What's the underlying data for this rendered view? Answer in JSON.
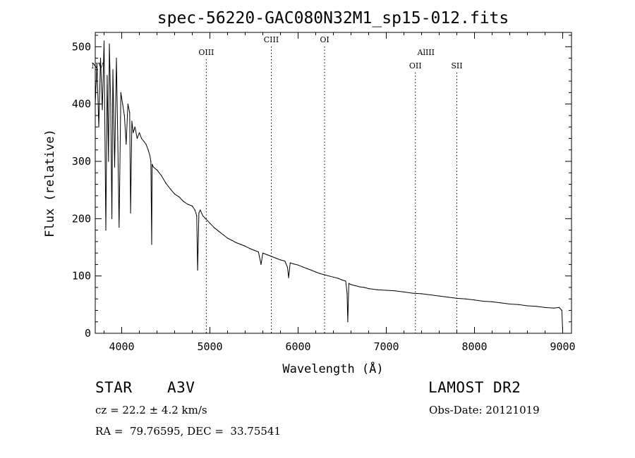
{
  "chart_data": {
    "type": "line",
    "title": "spec-56220-GAC080N32M1_sp15-012.fits",
    "xlabel": "Wavelength (Å)",
    "ylabel": "Flux (relative)",
    "xlim": [
      3700,
      9100
    ],
    "ylim": [
      0,
      525
    ],
    "xticks": [
      4000,
      5000,
      6000,
      7000,
      8000,
      9000
    ],
    "yticks": [
      0,
      100,
      200,
      300,
      400,
      500
    ],
    "grid": false,
    "line_color": "#000000",
    "marker_color": "#000000",
    "series": [
      {
        "x": [
          3700,
          3720,
          3740,
          3760,
          3780,
          3800,
          3820,
          3835,
          3850,
          3860,
          3875,
          3889,
          3900,
          3920,
          3940,
          3955,
          3970,
          3990,
          4010,
          4030,
          4050,
          4070,
          4090,
          4101,
          4115,
          4130,
          4150,
          4175,
          4200,
          4225,
          4250,
          4275,
          4300,
          4320,
          4330,
          4340,
          4345,
          4360,
          4400,
          4450,
          4500,
          4550,
          4600,
          4650,
          4700,
          4750,
          4800,
          4830,
          4850,
          4861,
          4875,
          4890,
          4920,
          4950,
          5000,
          5050,
          5100,
          5150,
          5200,
          5250,
          5300,
          5350,
          5400,
          5450,
          5500,
          5550,
          5580,
          5600,
          5650,
          5700,
          5750,
          5800,
          5850,
          5880,
          5893,
          5910,
          5950,
          6000,
          6050,
          6100,
          6150,
          6200,
          6250,
          6300,
          6350,
          6400,
          6450,
          6500,
          6540,
          6555,
          6563,
          6575,
          6600,
          6650,
          6700,
          6750,
          6800,
          6900,
          7000,
          7100,
          7200,
          7300,
          7400,
          7500,
          7600,
          7700,
          7800,
          7900,
          8000,
          8100,
          8200,
          8300,
          8400,
          8500,
          8600,
          8700,
          8800,
          8900,
          8960,
          8990,
          9000
        ],
        "y": [
          400,
          470,
          360,
          480,
          390,
          510,
          180,
          450,
          300,
          505,
          400,
          200,
          460,
          290,
          480,
          340,
          185,
          420,
          400,
          380,
          330,
          400,
          385,
          210,
          370,
          350,
          360,
          340,
          350,
          340,
          335,
          330,
          320,
          310,
          300,
          155,
          295,
          290,
          285,
          275,
          262,
          252,
          243,
          238,
          230,
          225,
          222,
          215,
          205,
          110,
          210,
          215,
          205,
          200,
          192,
          184,
          178,
          172,
          166,
          162,
          158,
          155,
          152,
          148,
          145,
          142,
          120,
          140,
          137,
          134,
          131,
          128,
          126,
          115,
          97,
          123,
          121,
          119,
          116,
          113,
          110,
          107,
          104,
          102,
          100,
          98,
          96,
          93,
          91,
          70,
          20,
          87,
          85,
          83,
          81,
          80,
          78,
          76,
          75,
          74,
          72,
          70,
          69,
          67,
          65,
          63,
          61,
          60,
          58,
          56,
          55,
          53,
          51,
          50,
          48,
          47,
          45,
          44,
          45,
          40,
          5
        ]
      }
    ],
    "line_markers": [
      {
        "label": "NV",
        "x": 3725,
        "label_row": 1,
        "marker": false
      },
      {
        "label": "OIII",
        "x": 4959,
        "label_row": 0,
        "marker": true
      },
      {
        "label": "CIII",
        "x": 5696,
        "label_row": -1,
        "marker": true
      },
      {
        "label": "OI",
        "x": 6300,
        "label_row": -1,
        "marker": true
      },
      {
        "label": "AlIII",
        "x": 7450,
        "label_row": 0,
        "marker": false
      },
      {
        "label": "OII",
        "x": 7330,
        "label_row": 1,
        "marker": true
      },
      {
        "label": "SII",
        "x": 7800,
        "label_row": 1,
        "marker": true
      }
    ]
  },
  "info": {
    "object_class": "STAR",
    "subclass": "A3V",
    "survey": "LAMOST DR2",
    "cz": "cz = 22.2 ± 4.2 km/s",
    "obs_date": "Obs-Date: 20121019",
    "coords": "RA =  79.76595, DEC =  33.75541"
  }
}
